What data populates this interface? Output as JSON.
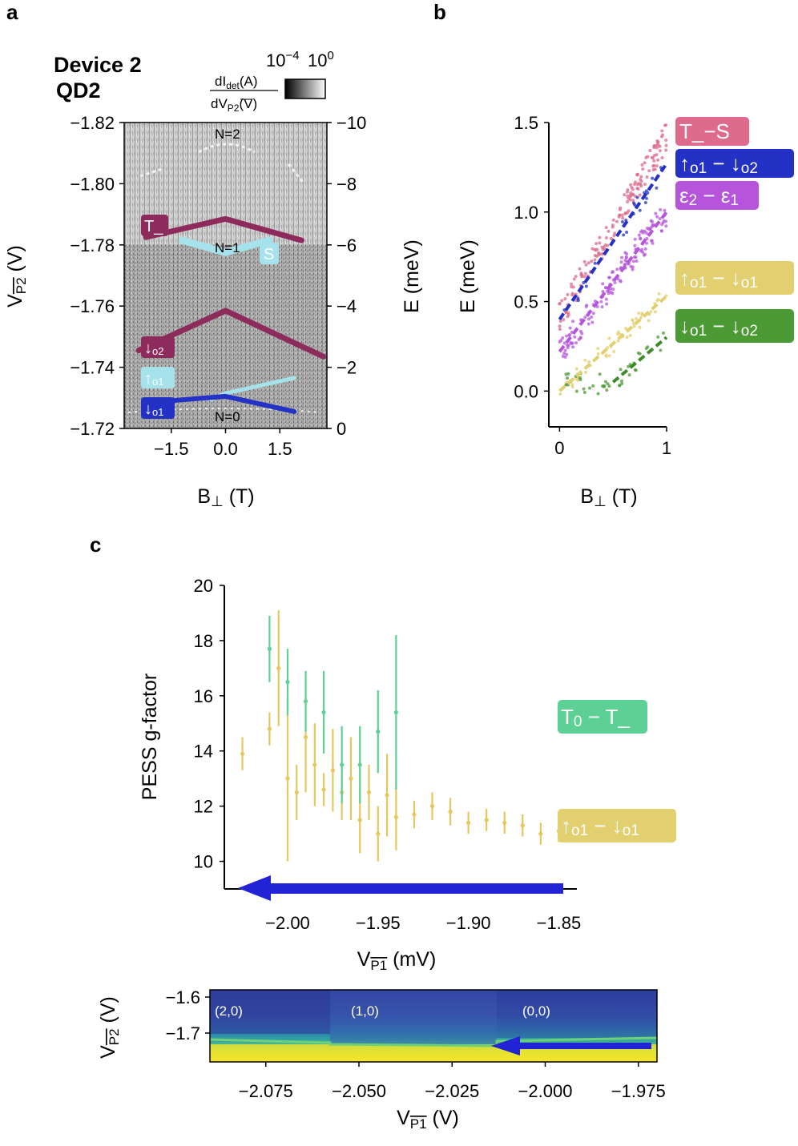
{
  "colors": {
    "magenta": "#8d2b5c",
    "cyan": "#a6e2ec",
    "blue": "#2331c4",
    "pink": "#de6a8c",
    "violet": "#b655dc",
    "gold": "#e2cf6f",
    "green": "#4c9a34",
    "mint": "#5dd195",
    "yellow_pts": "#e5c760",
    "arrow": "#2323d6"
  },
  "panel_a": {
    "letter": "a",
    "device": "Device 2",
    "dot": "QD2",
    "colorbar": {
      "label_num": "dI",
      "label_num_sub": "det",
      "label_num_unit": "(A)",
      "label_den": "dV",
      "label_den_sub": "P2",
      "label_den_unit": "(V)",
      "min": "10",
      "min_exp": "−4",
      "max": "10",
      "max_exp": "0"
    },
    "state_labels": {
      "n2": "N=2",
      "n1": "N=1",
      "n0": "N=0",
      "S": "S",
      "T": "T_",
      "down_o2": "↓",
      "down_o2_sub": "o2",
      "up_o1": "↑",
      "up_o1_sub": "o1",
      "down_o1": "↓",
      "down_o1_sub": "o1"
    }
  },
  "panel_b": {
    "letter": "b",
    "legend": {
      "TS": "T_−S",
      "l2_a": "↑",
      "l2_b": "o1",
      "l2_c": " − ↓",
      "l2_d": "o2",
      "l3_a": "ε",
      "l3_b": "2",
      "l3_c": " − ε",
      "l3_d": "1",
      "l4_a": "↑",
      "l4_b": "o1",
      "l4_c": " − ↓",
      "l4_d": "o1",
      "l5_a": "↓",
      "l5_b": "o1",
      "l5_c": " − ↓",
      "l5_d": "o2"
    }
  },
  "panel_c": {
    "letter": "c",
    "legend": {
      "T0_a": "T",
      "T0_b": "0",
      "T0_c": " − T_",
      "u_a": "↑",
      "u_b": "o1",
      "u_c": " − ↓",
      "u_d": "o1"
    },
    "map_labels": {
      "r20": "(2,0)",
      "r10": "(1,0)",
      "r00": "(0,0)"
    }
  },
  "chart_data": [
    {
      "id": "a",
      "type": "scatter",
      "title": "Device 2 QD2",
      "xlabel": "B⊥ (T)",
      "ylabel": "VP2 (V)",
      "ylabel_right": "E (meV)",
      "x_ticks": [
        "−1.5",
        "0.0",
        "1.5"
      ],
      "x_tick_values": [
        -1.5,
        0.0,
        1.5
      ],
      "xlim": [
        -2.8,
        2.8
      ],
      "ylim": [
        -1.72,
        -1.82
      ],
      "y_ticks": [
        "−1.82",
        "−1.80",
        "−1.78",
        "−1.76",
        "−1.74",
        "−1.72"
      ],
      "y_tick_values": [
        -1.82,
        -1.8,
        -1.78,
        -1.76,
        -1.74,
        -1.72
      ],
      "y2lim": [
        0,
        -10
      ],
      "y2_ticks": [
        "−10",
        "−8",
        "−6",
        "−4",
        "−2",
        "0"
      ],
      "y2_tick_values": [
        -10,
        -8,
        -6,
        -4,
        -2,
        0
      ],
      "series": [
        {
          "name": "T_",
          "x": [
            -2.2,
            0.0,
            2.1
          ],
          "y": [
            -1.7825,
            -1.7885,
            -1.7815
          ]
        },
        {
          "name": "S",
          "x": [
            -1.2,
            0.0,
            1.2
          ],
          "y": [
            -1.7815,
            -1.7775,
            -1.7815
          ]
        },
        {
          "name": "↓o2",
          "x": [
            -2.4,
            0.0,
            2.7
          ],
          "y": [
            -1.7455,
            -1.7585,
            -1.7435
          ]
        },
        {
          "name": "↑o1",
          "x": [
            -0.4,
            0.0,
            1.9
          ],
          "y": [
            -1.7295,
            -1.7315,
            -1.7365
          ]
        },
        {
          "name": "↓o1",
          "x": [
            -2.1,
            0.0,
            1.9
          ],
          "y": [
            -1.7285,
            -1.7305,
            -1.7255
          ]
        }
      ]
    },
    {
      "id": "b",
      "type": "scatter",
      "xlabel": "B⊥ (T)",
      "ylabel": "E (meV)",
      "xlim": [
        -0.1,
        1.0
      ],
      "ylim": [
        -0.2,
        1.5
      ],
      "x_ticks": [
        "0",
        "1"
      ],
      "x_tick_values": [
        0,
        1
      ],
      "y_ticks": [
        "0.0",
        "0.5",
        "1.0",
        "1.5"
      ],
      "y_tick_values": [
        0.0,
        0.5,
        1.0,
        1.5
      ],
      "series": [
        {
          "name": "T_−S",
          "fit": [
            [
              0.0,
              0.42
            ],
            [
              1.0,
              1.42
            ]
          ]
        },
        {
          "name": "↑o1 − ↓o2",
          "fit": [
            [
              0.0,
              0.4
            ],
            [
              1.0,
              1.27
            ]
          ]
        },
        {
          "name": "ε2 − ε1",
          "fit": [
            [
              0.0,
              0.22
            ],
            [
              1.0,
              1.0
            ]
          ]
        },
        {
          "name": "↑o1 − ↓o1",
          "fit": [
            [
              0.0,
              0.0
            ],
            [
              1.0,
              0.53
            ]
          ]
        },
        {
          "name": "↓o1 − ↓o2",
          "fit": [
            [
              0.5,
              0.05
            ],
            [
              1.0,
              0.3
            ]
          ]
        }
      ]
    },
    {
      "id": "c",
      "type": "scatter",
      "xlabel": "VP1 (mV)",
      "ylabel": "PESS g-factor",
      "xlim": [
        -2.035,
        -1.84
      ],
      "ylim": [
        9.0,
        20.0
      ],
      "x_ticks": [
        "−2.00",
        "−1.95",
        "−1.90",
        "−1.85"
      ],
      "x_tick_values": [
        -2.0,
        -1.95,
        -1.9,
        -1.85
      ],
      "y_ticks": [
        "10",
        "12",
        "14",
        "16",
        "18",
        "20"
      ],
      "y_tick_values": [
        10,
        12,
        14,
        16,
        18,
        20
      ],
      "series": [
        {
          "name": "T0 − T_",
          "x": [
            -2.01,
            -2.0,
            -1.99,
            -1.98,
            -1.97,
            -1.96,
            -1.95,
            -1.94
          ],
          "y": [
            17.7,
            16.5,
            15.8,
            15.4,
            13.5,
            13.5,
            14.7,
            15.4
          ],
          "err": [
            1.2,
            1.2,
            1.1,
            1.5,
            1.4,
            1.4,
            1.5,
            2.8
          ]
        },
        {
          "name": "↑o1 − ↓o1",
          "x": [
            -2.025,
            -2.01,
            -2.005,
            -2.0,
            -1.995,
            -1.99,
            -1.985,
            -1.98,
            -1.975,
            -1.97,
            -1.965,
            -1.96,
            -1.955,
            -1.95,
            -1.945,
            -1.94,
            -1.93,
            -1.92,
            -1.91,
            -1.9,
            -1.89,
            -1.88,
            -1.87,
            -1.86,
            -1.85
          ],
          "y": [
            13.9,
            14.8,
            17.0,
            13.0,
            12.5,
            14.5,
            13.5,
            12.6,
            13.3,
            12.5,
            13.0,
            11.5,
            12.5,
            11.0,
            12.4,
            11.6,
            11.7,
            12.0,
            11.8,
            11.4,
            11.5,
            11.4,
            11.3,
            11.0,
            11.1
          ],
          "err": [
            0.6,
            0.6,
            2.1,
            3.0,
            1.0,
            2.0,
            1.5,
            0.6,
            1.5,
            1.0,
            1.5,
            1.2,
            1.0,
            1.0,
            1.5,
            1.2,
            0.5,
            0.5,
            0.5,
            0.4,
            0.4,
            0.4,
            0.4,
            0.4,
            0.4
          ]
        }
      ]
    },
    {
      "id": "c-map",
      "type": "heatmap",
      "xlabel": "VP1 (V)",
      "ylabel": "VP2 (V)",
      "xlim": [
        -2.09,
        -1.97
      ],
      "ylim": [
        -1.78,
        -1.58
      ],
      "x_ticks": [
        "−2.075",
        "−2.050",
        "−2.025",
        "−2.000",
        "−1.975"
      ],
      "x_tick_values": [
        -2.075,
        -2.05,
        -2.025,
        -2.0,
        -1.975
      ],
      "y_ticks": [
        "−1.6",
        "−1.7"
      ],
      "y_tick_values": [
        -1.6,
        -1.7
      ],
      "regions": [
        "(2,0)",
        "(1,0)",
        "(0,0)"
      ],
      "arrow": {
        "from": -1.97,
        "to": -2.014,
        "at_y": -1.745
      }
    }
  ]
}
